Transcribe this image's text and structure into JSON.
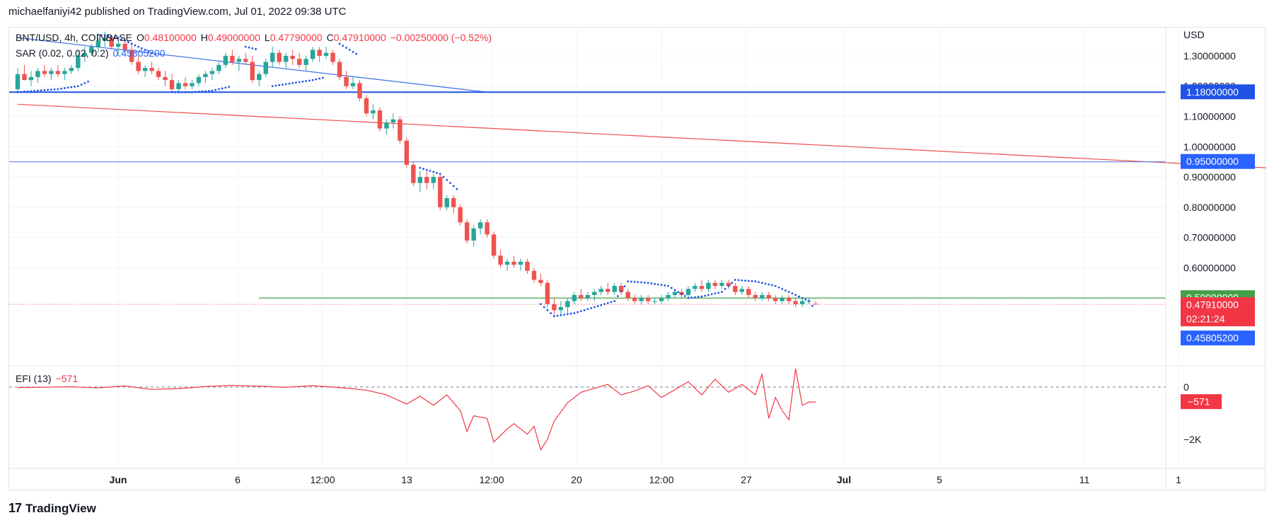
{
  "header": {
    "publisher": "michaelfaniyi42 published on TradingView.com, Jul 01, 2022 09:38 UTC"
  },
  "legend": {
    "symbol": "BNT/USD, 4h, COINBASE",
    "open_label": "O",
    "open": "0.48100000",
    "high_label": "H",
    "high": "0.49000000",
    "low_label": "L",
    "low": "0.47790000",
    "close_label": "C",
    "close": "0.47910000",
    "change": "−0.00250000 (−0.52%)",
    "sar_label": "SAR (0.02, 0.02, 0.2)",
    "sar_value": "0.45805200",
    "efi_label": "EFI (13)",
    "efi_value": "−571"
  },
  "axis": {
    "currency": "USD",
    "price_ticks": [
      "1.30000000",
      "1.20000000",
      "1.10000000",
      "1.00000000",
      "0.90000000",
      "0.80000000",
      "0.70000000",
      "0.60000000"
    ],
    "efi_ticks": [
      "0",
      "−2K"
    ],
    "time_ticks": [
      "Jun",
      "6",
      "12:00",
      "13",
      "12:00",
      "20",
      "12:00",
      "27",
      "Jul",
      "5",
      "11",
      "1"
    ]
  },
  "price_labels": [
    {
      "text": "1.18000000",
      "color": "#1e53e5"
    },
    {
      "text": "0.95000000",
      "color": "#2962ff"
    },
    {
      "text": "0.50000000",
      "color": "#43a047"
    },
    {
      "text": "0.47910000",
      "color": "#f23645"
    },
    {
      "text": "02:21:24",
      "color": "#f23645"
    },
    {
      "text": "0.45805200",
      "color": "#2962ff"
    }
  ],
  "efi_label_box": {
    "text": "−571",
    "color": "#f23645"
  },
  "colors": {
    "up": "#26a69a",
    "down": "#ef5350",
    "sar": "#1e53e5",
    "efi": "#f23645"
  },
  "brand": {
    "logo_text": "TradingView",
    "logo_icon": "tradingview-logo-icon"
  },
  "chart_data": {
    "type": "candlestick",
    "timeframe": "4h",
    "x_range": [
      "2022-05-29",
      "2022-07-01 08:00"
    ],
    "ylim": [
      0.4,
      1.37
    ],
    "candles_ohlc": [
      [
        1.19,
        1.26,
        1.18,
        1.24
      ],
      [
        1.24,
        1.27,
        1.22,
        1.22
      ],
      [
        1.22,
        1.25,
        1.2,
        1.23
      ],
      [
        1.23,
        1.26,
        1.21,
        1.25
      ],
      [
        1.25,
        1.27,
        1.23,
        1.24
      ],
      [
        1.24,
        1.26,
        1.22,
        1.25
      ],
      [
        1.25,
        1.27,
        1.23,
        1.24
      ],
      [
        1.24,
        1.26,
        1.22,
        1.25
      ],
      [
        1.25,
        1.27,
        1.24,
        1.26
      ],
      [
        1.26,
        1.32,
        1.25,
        1.3
      ],
      [
        1.3,
        1.33,
        1.28,
        1.31
      ],
      [
        1.31,
        1.34,
        1.3,
        1.33
      ],
      [
        1.33,
        1.36,
        1.31,
        1.35
      ],
      [
        1.35,
        1.38,
        1.33,
        1.36
      ],
      [
        1.36,
        1.37,
        1.32,
        1.33
      ],
      [
        1.33,
        1.35,
        1.3,
        1.34
      ],
      [
        1.34,
        1.36,
        1.31,
        1.32
      ],
      [
        1.32,
        1.34,
        1.27,
        1.28
      ],
      [
        1.28,
        1.3,
        1.24,
        1.25
      ],
      [
        1.25,
        1.27,
        1.23,
        1.26
      ],
      [
        1.26,
        1.28,
        1.24,
        1.25
      ],
      [
        1.25,
        1.26,
        1.22,
        1.23
      ],
      [
        1.23,
        1.25,
        1.2,
        1.22
      ],
      [
        1.22,
        1.24,
        1.18,
        1.19
      ],
      [
        1.19,
        1.22,
        1.18,
        1.21
      ],
      [
        1.21,
        1.23,
        1.19,
        1.2
      ],
      [
        1.2,
        1.22,
        1.19,
        1.21
      ],
      [
        1.21,
        1.24,
        1.2,
        1.23
      ],
      [
        1.23,
        1.25,
        1.21,
        1.24
      ],
      [
        1.24,
        1.26,
        1.22,
        1.25
      ],
      [
        1.25,
        1.28,
        1.24,
        1.27
      ],
      [
        1.27,
        1.31,
        1.26,
        1.3
      ],
      [
        1.3,
        1.32,
        1.27,
        1.28
      ],
      [
        1.28,
        1.3,
        1.25,
        1.29
      ],
      [
        1.29,
        1.31,
        1.27,
        1.28
      ],
      [
        1.28,
        1.3,
        1.21,
        1.22
      ],
      [
        1.22,
        1.25,
        1.2,
        1.24
      ],
      [
        1.24,
        1.29,
        1.23,
        1.28
      ],
      [
        1.28,
        1.33,
        1.26,
        1.31
      ],
      [
        1.31,
        1.32,
        1.27,
        1.28
      ],
      [
        1.28,
        1.31,
        1.26,
        1.3
      ],
      [
        1.3,
        1.32,
        1.27,
        1.29
      ],
      [
        1.29,
        1.31,
        1.26,
        1.27
      ],
      [
        1.27,
        1.3,
        1.25,
        1.29
      ],
      [
        1.29,
        1.33,
        1.28,
        1.32
      ],
      [
        1.32,
        1.33,
        1.28,
        1.3
      ],
      [
        1.3,
        1.33,
        1.29,
        1.31
      ],
      [
        1.31,
        1.32,
        1.27,
        1.28
      ],
      [
        1.28,
        1.29,
        1.22,
        1.23
      ],
      [
        1.23,
        1.25,
        1.19,
        1.2
      ],
      [
        1.2,
        1.23,
        1.19,
        1.21
      ],
      [
        1.21,
        1.22,
        1.15,
        1.16
      ],
      [
        1.16,
        1.17,
        1.1,
        1.11
      ],
      [
        1.11,
        1.14,
        1.09,
        1.12
      ],
      [
        1.12,
        1.13,
        1.05,
        1.06
      ],
      [
        1.06,
        1.09,
        1.04,
        1.08
      ],
      [
        1.08,
        1.11,
        1.06,
        1.09
      ],
      [
        1.09,
        1.1,
        1.01,
        1.02
      ],
      [
        1.02,
        1.03,
        0.93,
        0.94
      ],
      [
        0.94,
        0.95,
        0.87,
        0.88
      ],
      [
        0.88,
        0.92,
        0.85,
        0.9
      ],
      [
        0.9,
        0.92,
        0.86,
        0.88
      ],
      [
        0.88,
        0.91,
        0.86,
        0.9
      ],
      [
        0.9,
        0.91,
        0.79,
        0.8
      ],
      [
        0.8,
        0.84,
        0.79,
        0.83
      ],
      [
        0.83,
        0.84,
        0.78,
        0.8
      ],
      [
        0.8,
        0.81,
        0.74,
        0.75
      ],
      [
        0.75,
        0.76,
        0.68,
        0.69
      ],
      [
        0.69,
        0.74,
        0.67,
        0.73
      ],
      [
        0.73,
        0.76,
        0.71,
        0.75
      ],
      [
        0.75,
        0.76,
        0.7,
        0.71
      ],
      [
        0.71,
        0.72,
        0.63,
        0.64
      ],
      [
        0.64,
        0.66,
        0.6,
        0.61
      ],
      [
        0.61,
        0.63,
        0.59,
        0.62
      ],
      [
        0.62,
        0.64,
        0.6,
        0.61
      ],
      [
        0.61,
        0.63,
        0.59,
        0.62
      ],
      [
        0.62,
        0.63,
        0.58,
        0.59
      ],
      [
        0.59,
        0.6,
        0.55,
        0.56
      ],
      [
        0.56,
        0.58,
        0.54,
        0.55
      ],
      [
        0.55,
        0.56,
        0.47,
        0.48
      ],
      [
        0.48,
        0.5,
        0.44,
        0.46
      ],
      [
        0.46,
        0.49,
        0.44,
        0.47
      ],
      [
        0.47,
        0.5,
        0.45,
        0.49
      ],
      [
        0.49,
        0.52,
        0.48,
        0.51
      ],
      [
        0.51,
        0.53,
        0.49,
        0.5
      ],
      [
        0.5,
        0.52,
        0.49,
        0.51
      ],
      [
        0.51,
        0.53,
        0.49,
        0.52
      ],
      [
        0.52,
        0.54,
        0.51,
        0.53
      ],
      [
        0.53,
        0.55,
        0.51,
        0.52
      ],
      [
        0.52,
        0.55,
        0.51,
        0.54
      ],
      [
        0.54,
        0.55,
        0.51,
        0.52
      ],
      [
        0.52,
        0.53,
        0.49,
        0.5
      ],
      [
        0.5,
        0.51,
        0.48,
        0.49
      ],
      [
        0.49,
        0.51,
        0.48,
        0.5
      ],
      [
        0.5,
        0.51,
        0.48,
        0.49
      ],
      [
        0.49,
        0.5,
        0.48,
        0.49
      ],
      [
        0.49,
        0.51,
        0.48,
        0.5
      ],
      [
        0.5,
        0.52,
        0.49,
        0.51
      ],
      [
        0.51,
        0.53,
        0.5,
        0.52
      ],
      [
        0.52,
        0.53,
        0.5,
        0.51
      ],
      [
        0.51,
        0.54,
        0.5,
        0.53
      ],
      [
        0.53,
        0.55,
        0.52,
        0.54
      ],
      [
        0.54,
        0.56,
        0.52,
        0.53
      ],
      [
        0.53,
        0.56,
        0.52,
        0.55
      ],
      [
        0.55,
        0.56,
        0.53,
        0.54
      ],
      [
        0.54,
        0.56,
        0.53,
        0.55
      ],
      [
        0.55,
        0.56,
        0.53,
        0.54
      ],
      [
        0.54,
        0.55,
        0.51,
        0.52
      ],
      [
        0.52,
        0.54,
        0.51,
        0.53
      ],
      [
        0.53,
        0.54,
        0.5,
        0.51
      ],
      [
        0.51,
        0.52,
        0.49,
        0.5
      ],
      [
        0.5,
        0.52,
        0.49,
        0.51
      ],
      [
        0.51,
        0.52,
        0.49,
        0.5
      ],
      [
        0.5,
        0.51,
        0.48,
        0.49
      ],
      [
        0.49,
        0.51,
        0.48,
        0.5
      ],
      [
        0.5,
        0.51,
        0.48,
        0.49
      ],
      [
        0.49,
        0.5,
        0.47,
        0.48
      ],
      [
        0.48,
        0.5,
        0.47,
        0.49
      ],
      [
        0.49,
        0.5,
        0.48,
        0.49
      ],
      [
        0.481,
        0.49,
        0.4779,
        0.4791
      ]
    ],
    "sar_points": [
      [
        0,
        1.18
      ],
      [
        3,
        1.185
      ],
      [
        6,
        1.19
      ],
      [
        9,
        1.2
      ],
      [
        11,
        1.22
      ],
      [
        12,
        1.37
      ],
      [
        15,
        1.36
      ],
      [
        18,
        1.33
      ],
      [
        21,
        1.3
      ],
      [
        23,
        1.18
      ],
      [
        26,
        1.18
      ],
      [
        29,
        1.185
      ],
      [
        32,
        1.2
      ],
      [
        34,
        1.33
      ],
      [
        36,
        1.32
      ],
      [
        38,
        1.2
      ],
      [
        41,
        1.21
      ],
      [
        44,
        1.22
      ],
      [
        46,
        1.23
      ],
      [
        48,
        1.34
      ],
      [
        51,
        1.3
      ],
      [
        54,
        1.2
      ],
      [
        57,
        1.05
      ],
      [
        60,
        0.93
      ],
      [
        63,
        0.91
      ],
      [
        66,
        0.85
      ],
      [
        69,
        0.76
      ],
      [
        72,
        0.66
      ],
      [
        75,
        0.56
      ],
      [
        78,
        0.48
      ],
      [
        80,
        0.44
      ],
      [
        83,
        0.45
      ],
      [
        86,
        0.47
      ],
      [
        89,
        0.49
      ],
      [
        91,
        0.555
      ],
      [
        94,
        0.55
      ],
      [
        97,
        0.54
      ],
      [
        100,
        0.5
      ],
      [
        102,
        0.505
      ],
      [
        105,
        0.52
      ],
      [
        107,
        0.56
      ],
      [
        110,
        0.555
      ],
      [
        113,
        0.54
      ],
      [
        116,
        0.51
      ],
      [
        118,
        0.49
      ],
      [
        119,
        0.458
      ]
    ],
    "efi_points": [
      [
        0,
        -20
      ],
      [
        4,
        -5
      ],
      [
        8,
        10
      ],
      [
        12,
        -30
      ],
      [
        16,
        40
      ],
      [
        20,
        -90
      ],
      [
        24,
        -60
      ],
      [
        28,
        20
      ],
      [
        32,
        60
      ],
      [
        36,
        30
      ],
      [
        40,
        -10
      ],
      [
        44,
        50
      ],
      [
        48,
        -20
      ],
      [
        52,
        -120
      ],
      [
        55,
        -300
      ],
      [
        58,
        -650
      ],
      [
        60,
        -350
      ],
      [
        62,
        -700
      ],
      [
        64,
        -300
      ],
      [
        66,
        -900
      ],
      [
        67,
        -1700
      ],
      [
        68,
        -1100
      ],
      [
        70,
        -1200
      ],
      [
        71,
        -2100
      ],
      [
        73,
        -1600
      ],
      [
        74,
        -1400
      ],
      [
        76,
        -1800
      ],
      [
        77,
        -1500
      ],
      [
        78,
        -2400
      ],
      [
        79,
        -2000
      ],
      [
        80,
        -1300
      ],
      [
        82,
        -600
      ],
      [
        84,
        -200
      ],
      [
        86,
        -50
      ],
      [
        88,
        100
      ],
      [
        90,
        -300
      ],
      [
        92,
        -150
      ],
      [
        94,
        50
      ],
      [
        96,
        -400
      ],
      [
        98,
        -100
      ],
      [
        100,
        200
      ],
      [
        102,
        -300
      ],
      [
        104,
        300
      ],
      [
        106,
        -200
      ],
      [
        108,
        100
      ],
      [
        110,
        -300
      ],
      [
        111,
        500
      ],
      [
        112,
        -1200
      ],
      [
        113,
        -400
      ],
      [
        114,
        -900
      ],
      [
        115,
        -1250
      ],
      [
        116,
        700
      ],
      [
        117,
        -700
      ],
      [
        118,
        -571
      ],
      [
        119,
        -571
      ]
    ],
    "efi_ylim": [
      -2600,
      800
    ],
    "lines": [
      {
        "kind": "trendline",
        "color": "#4a78e8",
        "from": [
          0,
          1.36
        ],
        "to": [
          70,
          1.18
        ]
      },
      {
        "kind": "trendline",
        "color": "#f05a5a",
        "from": [
          0,
          1.14
        ],
        "to": [
          213,
          0.9
        ]
      },
      {
        "kind": "horizontal",
        "color": "#1e53e5",
        "value": 1.18
      },
      {
        "kind": "horizontal",
        "color": "#5b7ff0",
        "value": 0.95
      },
      {
        "kind": "horizontal",
        "color": "#43a047",
        "value": 0.5,
        "from_index": 36
      }
    ]
  }
}
